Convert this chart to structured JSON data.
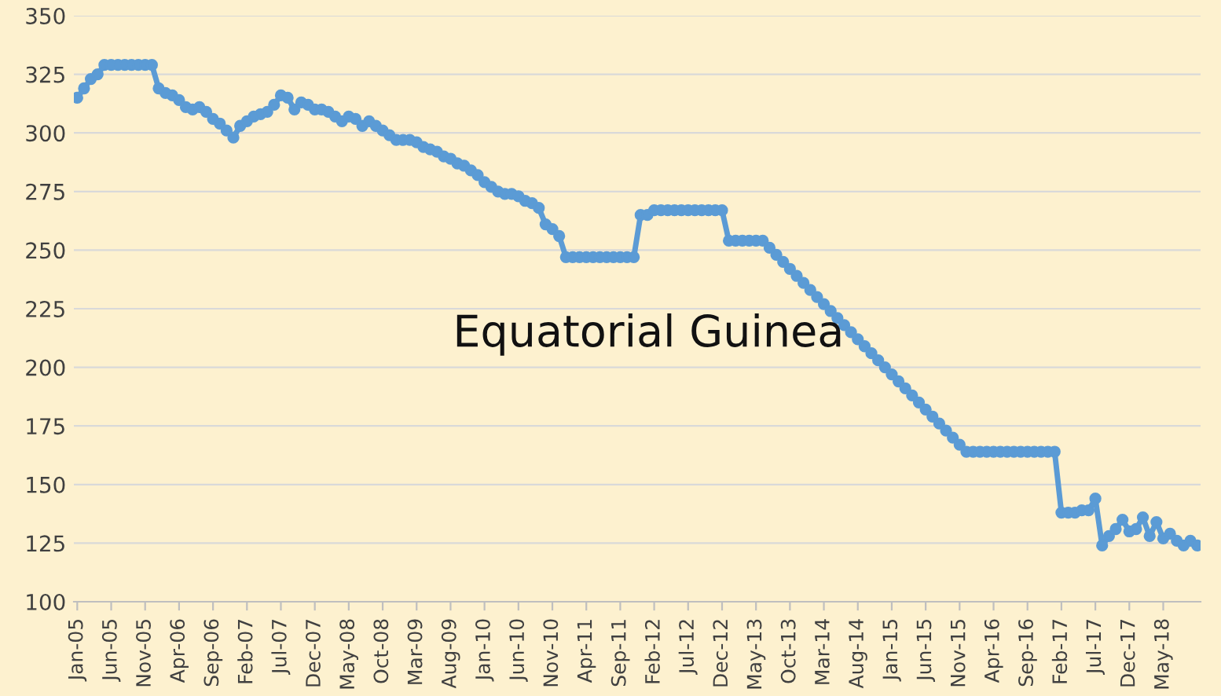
{
  "chart_data": {
    "type": "line",
    "categories": [
      "Jan-05",
      null,
      null,
      null,
      null,
      "Jun-05",
      null,
      null,
      null,
      null,
      "Nov-05",
      null,
      null,
      null,
      null,
      "Apr-06",
      null,
      null,
      null,
      null,
      "Sep-06",
      null,
      null,
      null,
      null,
      "Feb-07",
      null,
      null,
      null,
      null,
      "Jul-07",
      null,
      null,
      null,
      null,
      "Dec-07",
      null,
      null,
      null,
      null,
      "May-08",
      null,
      null,
      null,
      null,
      "Oct-08",
      null,
      null,
      null,
      null,
      "Mar-09",
      null,
      null,
      null,
      null,
      "Aug-09",
      null,
      null,
      null,
      null,
      "Jan-10",
      null,
      null,
      null,
      null,
      "Jun-10",
      null,
      null,
      null,
      null,
      "Nov-10",
      null,
      null,
      null,
      null,
      "Apr-11",
      null,
      null,
      null,
      null,
      "Sep-11",
      null,
      null,
      null,
      null,
      "Feb-12",
      null,
      null,
      null,
      null,
      "Jul-12",
      null,
      null,
      null,
      null,
      "Dec-12",
      null,
      null,
      null,
      null,
      "May-13",
      null,
      null,
      null,
      null,
      "Oct-13",
      null,
      null,
      null,
      null,
      "Mar-14",
      null,
      null,
      null,
      null,
      "Aug-14",
      null,
      null,
      null,
      null,
      "Jan-15",
      null,
      null,
      null,
      null,
      "Jun-15",
      null,
      null,
      null,
      null,
      "Nov-15",
      null,
      null,
      null,
      null,
      "Apr-16",
      null,
      null,
      null,
      null,
      "Sep-16",
      null,
      null,
      null,
      null,
      "Feb-17",
      null,
      null,
      null,
      null,
      "Jul-17",
      null,
      null,
      null,
      null,
      "Dec-17",
      null,
      null,
      null,
      null,
      "May-18",
      null,
      null,
      null,
      null,
      null
    ],
    "series": [
      {
        "color": "#5b9bd5",
        "values": [
          315,
          319,
          323,
          325,
          329,
          329,
          329,
          329,
          329,
          329,
          329,
          329,
          319,
          317,
          316,
          314,
          311,
          310,
          311,
          309,
          306,
          304,
          301,
          298,
          303,
          305,
          307,
          308,
          309,
          312,
          316,
          315,
          310,
          313,
          312,
          310,
          310,
          309,
          307,
          305,
          307,
          306,
          303,
          305,
          303,
          301,
          299,
          297,
          297,
          297,
          296,
          294,
          293,
          292,
          290,
          289,
          287,
          286,
          284,
          282,
          279,
          277,
          275,
          274,
          274,
          273,
          271,
          270,
          268,
          261,
          259,
          256,
          247,
          247,
          247,
          247,
          247,
          247,
          247,
          247,
          247,
          247,
          247,
          265,
          265,
          267,
          267,
          267,
          267,
          267,
          267,
          267,
          267,
          267,
          267,
          267,
          254,
          254,
          254,
          254,
          254,
          254,
          251,
          248,
          245,
          242,
          239,
          236,
          233,
          230,
          227,
          224,
          221,
          218,
          215,
          212,
          209,
          206,
          203,
          200,
          197,
          194,
          191,
          188,
          185,
          182,
          179,
          176,
          173,
          170,
          167,
          164,
          164,
          164,
          164,
          164,
          164,
          164,
          164,
          164,
          164,
          164,
          164,
          164,
          164,
          138,
          138,
          138,
          139,
          139,
          144,
          124,
          128,
          131,
          135,
          130,
          131,
          136,
          128,
          134,
          127,
          129,
          126,
          124,
          126,
          124
        ]
      }
    ],
    "ylim": [
      100,
      350
    ],
    "yticks": [
      100,
      125,
      150,
      175,
      200,
      225,
      250,
      275,
      300,
      325,
      350
    ],
    "grid": "y",
    "marker": "circle",
    "line_style": "solid",
    "annotations": [
      "Equatorial Guinea"
    ]
  }
}
